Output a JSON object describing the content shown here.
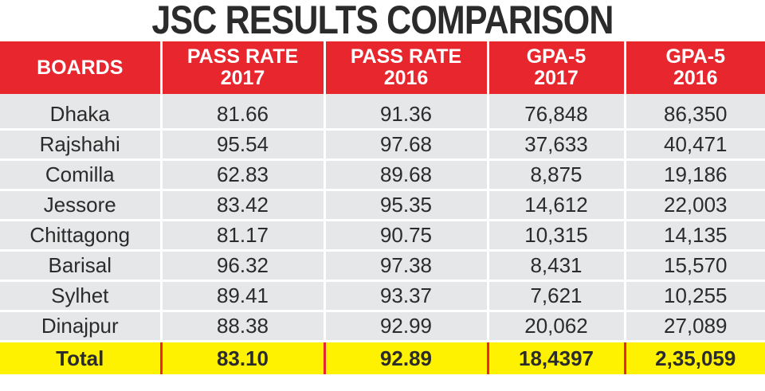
{
  "title": "JSC RESULTS COMPARISON",
  "columns": [
    {
      "line1": "BOARDS",
      "line2": ""
    },
    {
      "line1": "PASS RATE",
      "line2": "2017"
    },
    {
      "line1": "PASS RATE",
      "line2": "2016"
    },
    {
      "line1": "GPA-5",
      "line2": "2017"
    },
    {
      "line1": "GPA-5",
      "line2": "2016"
    }
  ],
  "rows": [
    {
      "board": "Dhaka",
      "pass_2017": "81.66",
      "pass_2016": "91.36",
      "gpa5_2017": "76,848",
      "gpa5_2016": "86,350"
    },
    {
      "board": "Rajshahi",
      "pass_2017": "95.54",
      "pass_2016": "97.68",
      "gpa5_2017": "37,633",
      "gpa5_2016": "40,471"
    },
    {
      "board": "Comilla",
      "pass_2017": "62.83",
      "pass_2016": "89.68",
      "gpa5_2017": "8,875",
      "gpa5_2016": "19,186"
    },
    {
      "board": "Jessore",
      "pass_2017": "83.42",
      "pass_2016": "95.35",
      "gpa5_2017": "14,612",
      "gpa5_2016": "22,003"
    },
    {
      "board": "Chittagong",
      "pass_2017": "81.17",
      "pass_2016": "90.75",
      "gpa5_2017": "10,315",
      "gpa5_2016": "14,135"
    },
    {
      "board": "Barisal",
      "pass_2017": "96.32",
      "pass_2016": "97.38",
      "gpa5_2017": "8,431",
      "gpa5_2016": "15,570"
    },
    {
      "board": "Sylhet",
      "pass_2017": "89.41",
      "pass_2016": "93.37",
      "gpa5_2017": "7,621",
      "gpa5_2016": "10,255"
    },
    {
      "board": "Dinajpur",
      "pass_2017": "88.38",
      "pass_2016": "92.99",
      "gpa5_2017": "20,062",
      "gpa5_2016": "27,089"
    }
  ],
  "total": {
    "board": "Total",
    "pass_2017": "83.10",
    "pass_2016": "92.89",
    "gpa5_2017": "18,4397",
    "gpa5_2016": "2,35,059"
  },
  "colors": {
    "header_red": "#e8262d",
    "row_grey": "#e6e7e8",
    "total_yellow": "#fff200",
    "text_dark": "#2b2b2b"
  }
}
